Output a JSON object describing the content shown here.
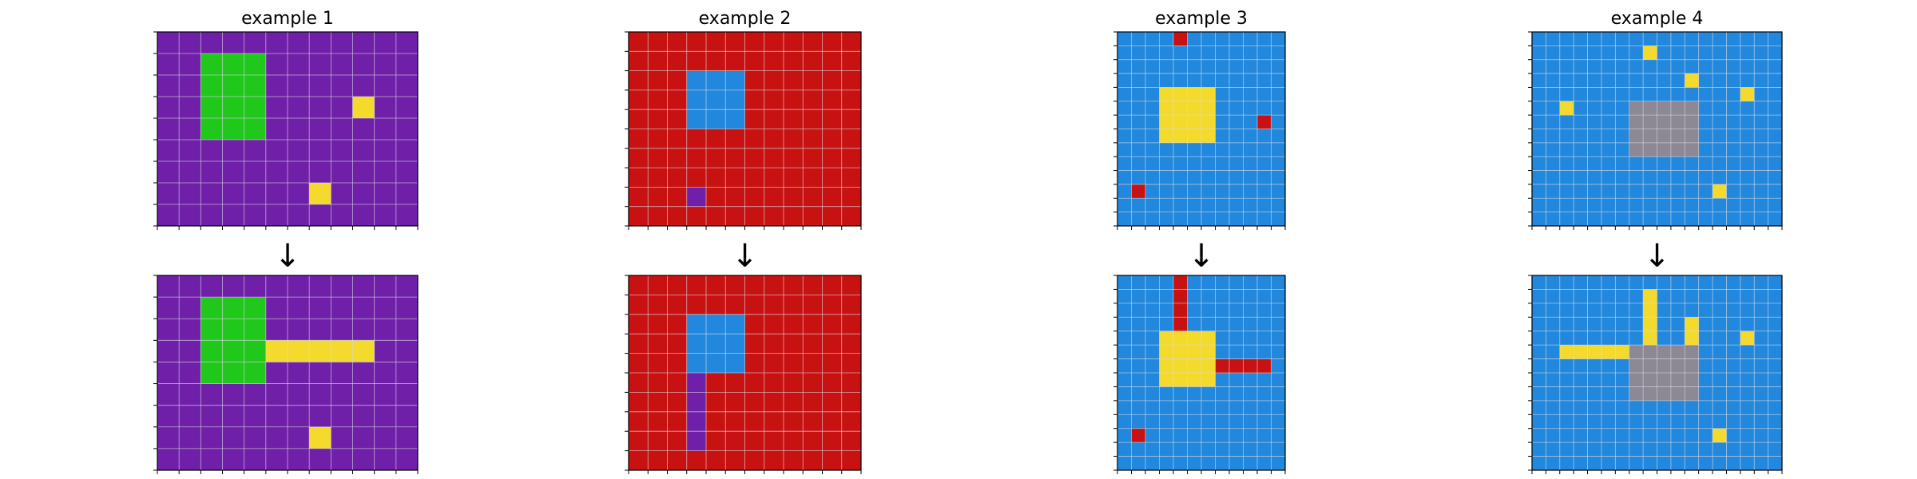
{
  "colors": {
    "purple": "#7020a8",
    "green": "#20c81c",
    "yellow": "#f4da2c",
    "red": "#c81212",
    "blue": "#2288dd",
    "gray": "#8c8894",
    "gridline": "#d8d8e0",
    "frame": "#000000"
  },
  "arrow": "↓",
  "examples": [
    {
      "title": "example 1",
      "cols": 12,
      "rows": 9,
      "background": "purple",
      "input": [
        {
          "color": "green",
          "x": 2,
          "y": 1,
          "w": 3,
          "h": 4
        },
        {
          "color": "yellow",
          "x": 9,
          "y": 3,
          "w": 1,
          "h": 1
        },
        {
          "color": "yellow",
          "x": 7,
          "y": 7,
          "w": 1,
          "h": 1
        }
      ],
      "output": [
        {
          "color": "green",
          "x": 2,
          "y": 1,
          "w": 3,
          "h": 4
        },
        {
          "color": "yellow",
          "x": 5,
          "y": 3,
          "w": 5,
          "h": 1
        },
        {
          "color": "yellow",
          "x": 7,
          "y": 7,
          "w": 1,
          "h": 1
        }
      ]
    },
    {
      "title": "example 2",
      "cols": 12,
      "rows": 10,
      "background": "red",
      "input": [
        {
          "color": "blue",
          "x": 3,
          "y": 2,
          "w": 3,
          "h": 3
        },
        {
          "color": "purple",
          "x": 3,
          "y": 8,
          "w": 1,
          "h": 1
        }
      ],
      "output": [
        {
          "color": "blue",
          "x": 3,
          "y": 2,
          "w": 3,
          "h": 3
        },
        {
          "color": "purple",
          "x": 3,
          "y": 5,
          "w": 1,
          "h": 4
        }
      ]
    },
    {
      "title": "example 3",
      "cols": 12,
      "rows": 14,
      "background": "blue",
      "input": [
        {
          "color": "red",
          "x": 4,
          "y": 0,
          "w": 1,
          "h": 1
        },
        {
          "color": "yellow",
          "x": 3,
          "y": 4,
          "w": 4,
          "h": 4
        },
        {
          "color": "red",
          "x": 10,
          "y": 6,
          "w": 1,
          "h": 1
        },
        {
          "color": "red",
          "x": 1,
          "y": 11,
          "w": 1,
          "h": 1
        }
      ],
      "output": [
        {
          "color": "red",
          "x": 4,
          "y": 0,
          "w": 1,
          "h": 4
        },
        {
          "color": "yellow",
          "x": 3,
          "y": 4,
          "w": 4,
          "h": 4
        },
        {
          "color": "red",
          "x": 7,
          "y": 6,
          "w": 4,
          "h": 1
        },
        {
          "color": "red",
          "x": 1,
          "y": 11,
          "w": 1,
          "h": 1
        }
      ]
    },
    {
      "title": "example 4",
      "cols": 18,
      "rows": 14,
      "background": "blue",
      "input": [
        {
          "color": "yellow",
          "x": 8,
          "y": 1,
          "w": 1,
          "h": 1
        },
        {
          "color": "yellow",
          "x": 11,
          "y": 3,
          "w": 1,
          "h": 1
        },
        {
          "color": "yellow",
          "x": 15,
          "y": 4,
          "w": 1,
          "h": 1
        },
        {
          "color": "yellow",
          "x": 2,
          "y": 5,
          "w": 1,
          "h": 1
        },
        {
          "color": "gray",
          "x": 7,
          "y": 5,
          "w": 5,
          "h": 4
        },
        {
          "color": "yellow",
          "x": 13,
          "y": 11,
          "w": 1,
          "h": 1
        }
      ],
      "output": [
        {
          "color": "yellow",
          "x": 8,
          "y": 1,
          "w": 1,
          "h": 4
        },
        {
          "color": "yellow",
          "x": 11,
          "y": 3,
          "w": 1,
          "h": 2
        },
        {
          "color": "yellow",
          "x": 15,
          "y": 4,
          "w": 1,
          "h": 1
        },
        {
          "color": "yellow",
          "x": 2,
          "y": 5,
          "w": 5,
          "h": 1
        },
        {
          "color": "gray",
          "x": 7,
          "y": 5,
          "w": 5,
          "h": 4
        },
        {
          "color": "yellow",
          "x": 13,
          "y": 11,
          "w": 1,
          "h": 1
        }
      ]
    }
  ]
}
